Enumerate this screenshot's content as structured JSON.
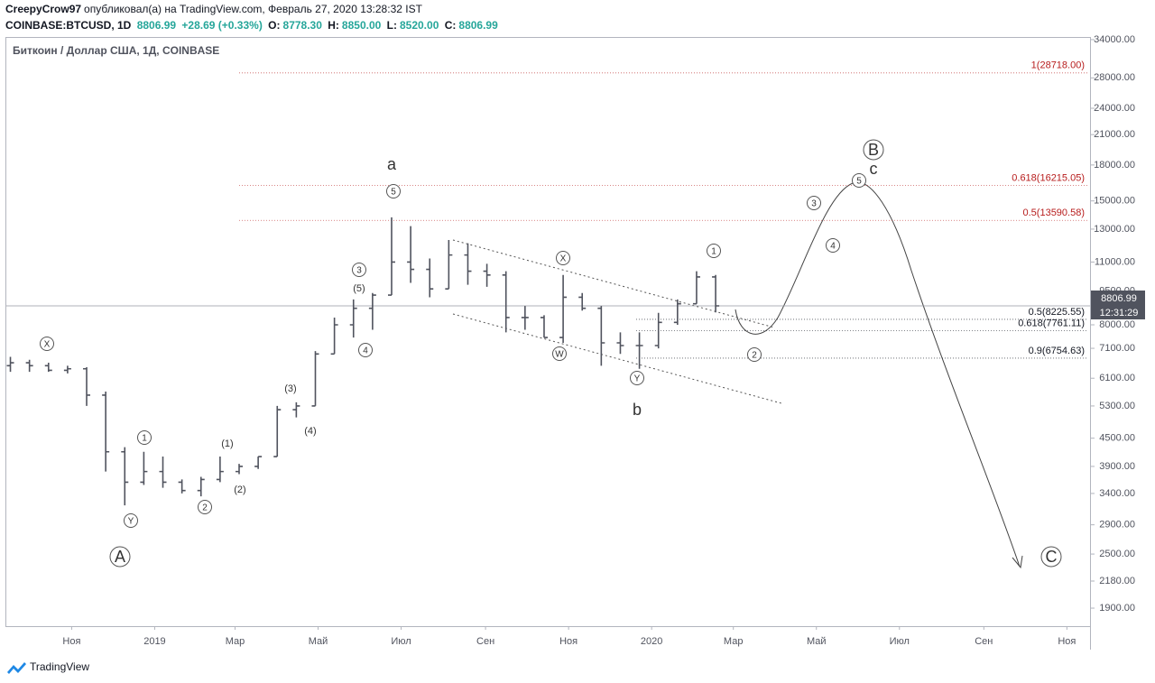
{
  "chart_data": {
    "type": "ohlc",
    "header": {
      "author": "CreepyCrow97",
      "published": "опубликовал(а) на TradingView.com, Февраль 27, 2020 13:28:32 IST",
      "symbol": "COINBASE:BTCUSD, 1D",
      "last": "8806.99",
      "change": "+28.69 (+0.33%)",
      "o_label": "O:",
      "o": "8778.30",
      "h_label": "H:",
      "h": "8850.00",
      "l_label": "L:",
      "l": "8520.00",
      "c_label": "C:",
      "c": "8806.99"
    },
    "title": "Биткоин / Доллар США, 1Д, COINBASE",
    "log_scale": true,
    "color": "#50535e",
    "ylim": [
      1734,
      34300
    ],
    "yticks": [
      {
        "value": 34000,
        "label": "34000.00"
      },
      {
        "value": 28000,
        "label": "28000.00"
      },
      {
        "value": 24000,
        "label": "24000.00"
      },
      {
        "value": 21000,
        "label": "21000.00"
      },
      {
        "value": 18000,
        "label": "18000.00"
      },
      {
        "value": 15000,
        "label": "15000.00"
      },
      {
        "value": 13000,
        "label": "13000.00"
      },
      {
        "value": 11000,
        "label": "11000.00"
      },
      {
        "value": 9500,
        "label": "9500.00"
      },
      {
        "value": 8000,
        "label": "8000.00"
      },
      {
        "value": 7100,
        "label": "7100.00"
      },
      {
        "value": 6100,
        "label": "6100.00"
      },
      {
        "value": 5300,
        "label": "5300.00"
      },
      {
        "value": 4500,
        "label": "4500.00"
      },
      {
        "value": 3900,
        "label": "3900.00"
      },
      {
        "value": 3400,
        "label": "3400.00"
      },
      {
        "value": 2900,
        "label": "2900.00"
      },
      {
        "value": 2500,
        "label": "2500.00"
      },
      {
        "value": 2180,
        "label": "2180.00"
      },
      {
        "value": 1900,
        "label": "1900.00"
      }
    ],
    "xlim": [
      "2018-09-14",
      "2020-11-18"
    ],
    "xticks": [
      {
        "value": "2018-11-01",
        "label": "Ноя"
      },
      {
        "value": "2019-01-01",
        "label": "2019"
      },
      {
        "value": "2019-03-01",
        "label": "Мар"
      },
      {
        "value": "2019-05-01",
        "label": "Май"
      },
      {
        "value": "2019-07-01",
        "label": "Июл"
      },
      {
        "value": "2019-09-01",
        "label": "Сен"
      },
      {
        "value": "2019-11-01",
        "label": "Ноя"
      },
      {
        "value": "2020-01-01",
        "label": "2020"
      },
      {
        "value": "2020-03-01",
        "label": "Мар"
      },
      {
        "value": "2020-05-01",
        "label": "Май"
      },
      {
        "value": "2020-07-01",
        "label": "Июл"
      },
      {
        "value": "2020-09-01",
        "label": "Сен"
      },
      {
        "value": "2020-11-01",
        "label": "Ноя"
      }
    ],
    "x": [
      "2018-09-17",
      "2018-10-01",
      "2018-10-15",
      "2018-10-29",
      "2018-11-12",
      "2018-11-26",
      "2018-12-10",
      "2018-12-24",
      "2019-01-07",
      "2019-01-21",
      "2019-02-04",
      "2019-02-18",
      "2019-03-04",
      "2019-03-18",
      "2019-04-01",
      "2019-04-15",
      "2019-04-29",
      "2019-05-13",
      "2019-05-27",
      "2019-06-10",
      "2019-06-24",
      "2019-07-08",
      "2019-07-22",
      "2019-08-05",
      "2019-08-19",
      "2019-09-02",
      "2019-09-16",
      "2019-09-30",
      "2019-10-14",
      "2019-10-28",
      "2019-11-11",
      "2019-11-25",
      "2019-12-09",
      "2019-12-23",
      "2020-01-06",
      "2020-01-20",
      "2020-02-03",
      "2020-02-17"
    ],
    "open": [
      6500,
      6600,
      6500,
      6350,
      6400,
      5600,
      4200,
      3600,
      3800,
      3600,
      3450,
      3650,
      3800,
      3900,
      4100,
      5200,
      5300,
      6900,
      8000,
      8700,
      9300,
      11000,
      10600,
      9600,
      11400,
      10500,
      10300,
      8300,
      8300,
      7500,
      9200,
      8700,
      7300,
      7200,
      7200,
      8100,
      8900,
      10200
    ],
    "high": [
      6800,
      6700,
      6600,
      6500,
      6450,
      5700,
      4300,
      4200,
      4100,
      3650,
      3700,
      4100,
      3950,
      4100,
      5300,
      5400,
      7000,
      8300,
      9100,
      9400,
      13800,
      13200,
      11200,
      12300,
      12100,
      10900,
      10500,
      8800,
      8400,
      10300,
      9400,
      8800,
      7700,
      7700,
      8500,
      9100,
      10500,
      10300
    ],
    "low": [
      6300,
      6300,
      6300,
      6250,
      5300,
      3800,
      3200,
      3550,
      3500,
      3400,
      3350,
      3600,
      3750,
      3850,
      4100,
      5000,
      5300,
      6900,
      7500,
      7800,
      9300,
      9900,
      9200,
      9600,
      9800,
      9700,
      7700,
      7800,
      7500,
      7300,
      8600,
      6500,
      6900,
      6400,
      7100,
      8000,
      8900,
      8520
    ],
    "close": [
      6600,
      6500,
      6350,
      6400,
      5600,
      4200,
      3600,
      3800,
      3600,
      3450,
      3650,
      3800,
      3900,
      4100,
      5200,
      5300,
      6900,
      8000,
      8700,
      9300,
      11000,
      10600,
      9600,
      11400,
      10500,
      10300,
      8300,
      8300,
      7500,
      9200,
      8700,
      7300,
      7200,
      7200,
      8100,
      8900,
      10200,
      8806.99
    ],
    "price_label": {
      "value": 8806.99,
      "label": "8806.99"
    },
    "countdown": "12:31:29",
    "levels": [
      {
        "value": 28718,
        "label": "1(28718.00)",
        "color": "#b71c1c"
      },
      {
        "value": 16215.05,
        "label": "0.618(16215.05)",
        "color": "#b71c1c"
      },
      {
        "value": 13590.58,
        "label": "0.5(13590.58)",
        "color": "#b71c1c"
      },
      {
        "value": 8225.55,
        "label": "0.5(8225.55)",
        "color": "#131722"
      },
      {
        "value": 7761.11,
        "label": "0.618(7761.11)",
        "color": "#131722"
      },
      {
        "value": 6754.63,
        "label": "0.9(6754.63)",
        "color": "#131722"
      }
    ],
    "wave_labels": [
      "X",
      "1",
      "Y",
      "A",
      "2",
      "(1)",
      "(2)",
      "(3)",
      "(4)",
      "(5)",
      "3",
      "4",
      "5",
      "a",
      "X",
      "W",
      "Y",
      "b",
      "1",
      "2",
      "3",
      "4",
      "5",
      "B",
      "c",
      "C"
    ],
    "footer": "TradingView"
  }
}
